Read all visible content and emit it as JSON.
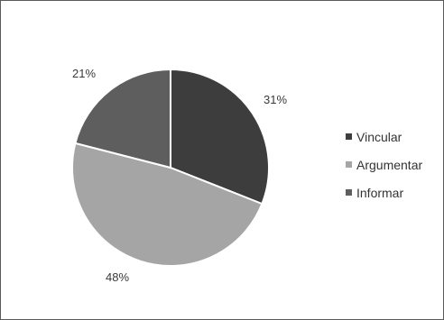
{
  "chart_data": {
    "type": "pie",
    "title": "",
    "categories": [
      "Vincular",
      "Argumentar",
      "Informar"
    ],
    "values": [
      31,
      48,
      21
    ],
    "labels": [
      "31%",
      "48%",
      "21%"
    ],
    "unit": "%",
    "colors": [
      "#3d3d3d",
      "#a5a5a5",
      "#5e5e5e"
    ],
    "legend_position": "right",
    "grid": false
  }
}
